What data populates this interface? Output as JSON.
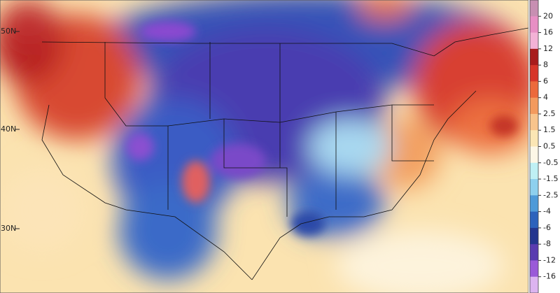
{
  "map": {
    "lat_labels": [
      "50N",
      "40N",
      "30N"
    ],
    "colorbar": {
      "ticks": [
        "20",
        "16",
        "12",
        "8",
        "6",
        "4",
        "2.5",
        "1.5",
        "0.5",
        "-0.5",
        "-1.5",
        "-2.5",
        "-4",
        "-6",
        "-8",
        "-12",
        "-16"
      ],
      "colors": [
        "#c78fb2",
        "#e78fc4",
        "#f3b2d6",
        "#a81c1c",
        "#d7362a",
        "#ec6a3c",
        "#f39a5e",
        "#f8c48c",
        "#fbe6b4",
        "#fdf7e6",
        "#bff0f4",
        "#8ed0ee",
        "#4e9ad8",
        "#2c62bc",
        "#24368f",
        "#5a3cb0",
        "#9a5ad8",
        "#dcb4f0"
      ]
    }
  }
}
